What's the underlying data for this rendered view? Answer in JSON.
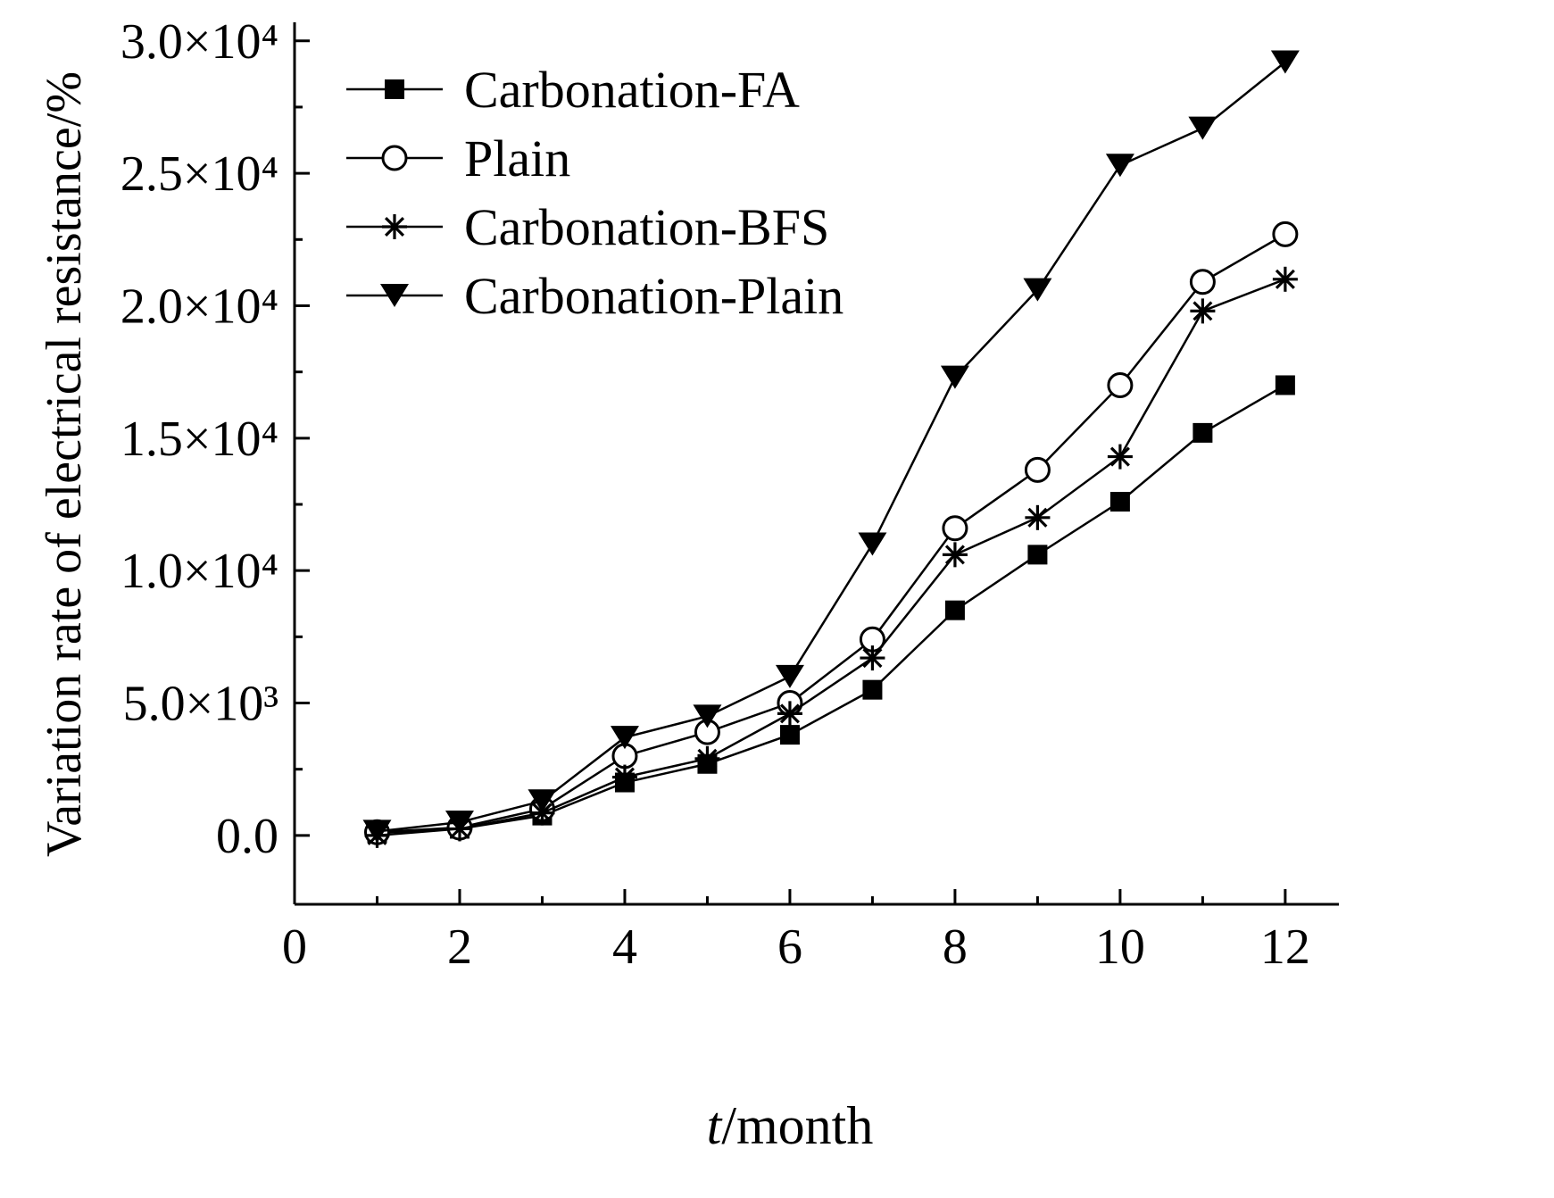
{
  "chart_data": {
    "type": "line",
    "title": "",
    "xlabel_italic": "t",
    "xlabel_rest": "/month",
    "ylabel": "Variation rate of electrical resistance/%",
    "x": [
      1,
      2,
      3,
      4,
      5,
      6,
      7,
      8,
      9,
      10,
      11,
      12
    ],
    "xlim": [
      0,
      12.65
    ],
    "ylim": [
      -2600,
      30700
    ],
    "grid": false,
    "xticks": {
      "major": [
        0,
        2,
        4,
        6,
        8,
        10,
        12
      ],
      "minor": [
        1,
        3,
        5,
        7,
        9,
        11
      ],
      "labels": [
        "0",
        "2",
        "4",
        "6",
        "8",
        "10",
        "12"
      ]
    },
    "yticks": {
      "major": [
        0,
        5000,
        10000,
        15000,
        20000,
        25000,
        30000
      ],
      "minor": [
        2500,
        7500,
        12500,
        17500,
        22500,
        27500
      ],
      "labels": [
        "0.0",
        "5.0×10³",
        "1.0×10⁴",
        "1.5×10⁴",
        "2.0×10⁴",
        "2.5×10⁴",
        "3.0×10⁴"
      ]
    },
    "series": [
      {
        "name": "Carbonation-FA",
        "marker": "square-filled",
        "values": [
          100,
          250,
          750,
          2000,
          2700,
          3800,
          5500,
          8500,
          10600,
          12600,
          15200,
          17000
        ]
      },
      {
        "name": "Plain",
        "marker": "circle-open",
        "values": [
          120,
          300,
          1000,
          3000,
          3900,
          5000,
          7400,
          11600,
          13800,
          17000,
          20900,
          22700
        ]
      },
      {
        "name": "Carbonation-BFS",
        "marker": "asterisk",
        "values": [
          0,
          250,
          850,
          2200,
          2900,
          4600,
          6700,
          10600,
          12000,
          14300,
          19800,
          21000
        ]
      },
      {
        "name": "Carbonation-Plain",
        "marker": "triangle-down-filled",
        "values": [
          150,
          500,
          1300,
          3700,
          4500,
          6000,
          11000,
          17300,
          20600,
          25300,
          26700,
          29200
        ]
      }
    ],
    "legend": {
      "position": "top-left",
      "entries": [
        "Carbonation-FA",
        "Plain",
        "Carbonation-BFS",
        "Carbonation-Plain"
      ]
    },
    "colors": {
      "foreground": "#000000",
      "background": "#ffffff"
    }
  }
}
